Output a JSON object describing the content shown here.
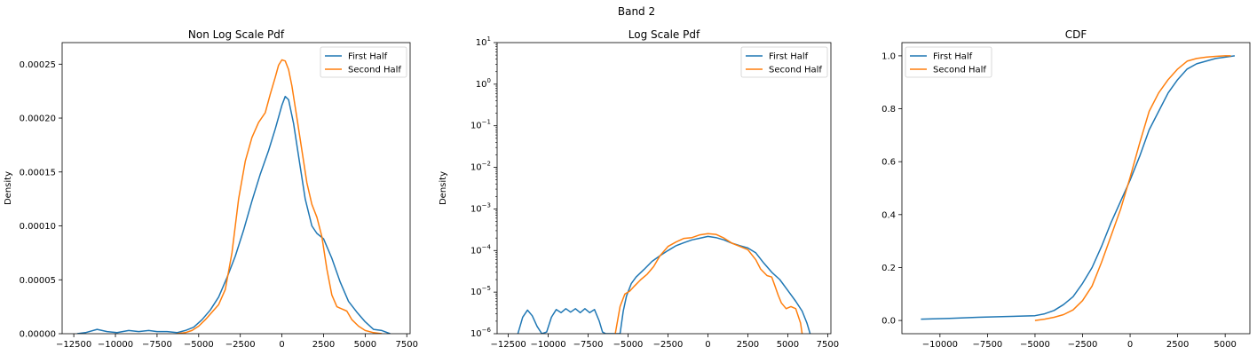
{
  "figure": {
    "suptitle": "Band 2"
  },
  "colors": {
    "first": "#1f77b4",
    "second": "#ff7f0e"
  },
  "chart_data": [
    {
      "type": "line",
      "title": "Non Log Scale Pdf",
      "xlabel": "",
      "ylabel": "Density",
      "xlim": [
        -13200,
        7700
      ],
      "ylim": [
        0,
        0.00027
      ],
      "yscale": "linear",
      "xticks": [
        -12500,
        -10000,
        -7500,
        -5000,
        -2500,
        0,
        2500,
        5000,
        7500
      ],
      "xtick_labels": [
        "−12500",
        "−10000",
        "−7500",
        "−5000",
        "−2500",
        "0",
        "2500",
        "5000",
        "7500"
      ],
      "yticks": [
        0,
        5e-05,
        0.0001,
        0.00015,
        0.0002,
        0.00025
      ],
      "ytick_labels": [
        "0.00000",
        "0.00005",
        "0.00010",
        "0.00015",
        "0.00020",
        "0.00025"
      ],
      "legend": {
        "placement": "upper right"
      },
      "series": [
        {
          "name": "First Half",
          "x": [
            -12300,
            -11800,
            -11100,
            -10500,
            -9900,
            -9200,
            -8600,
            -8000,
            -7500,
            -6900,
            -6300,
            -5800,
            -5300,
            -4800,
            -4300,
            -3800,
            -3300,
            -2800,
            -2300,
            -1800,
            -1300,
            -800,
            -400,
            0,
            200,
            400,
            700,
            1000,
            1400,
            1800,
            2100,
            2500,
            3000,
            3500,
            4000,
            4500,
            5000,
            5500,
            6000,
            6500
          ],
          "y": [
            0.0,
            1e-06,
            4e-06,
            2e-06,
            1e-06,
            3e-06,
            2e-06,
            3e-06,
            2e-06,
            2e-06,
            1e-06,
            3e-06,
            6e-06,
            1.3e-05,
            2.2e-05,
            3.4e-05,
            5.2e-05,
            7.2e-05,
            9.6e-05,
            0.000123,
            0.000148,
            0.00017,
            0.00019,
            0.000212,
            0.00022,
            0.000217,
            0.000195,
            0.000165,
            0.000125,
            0.0001,
            9.3e-05,
            8.8e-05,
            7e-05,
            4.8e-05,
            3e-05,
            2e-05,
            1.1e-05,
            4e-06,
            3e-06,
            0.0
          ]
        },
        {
          "name": "Second Half",
          "x": [
            -6300,
            -5800,
            -5400,
            -5000,
            -4600,
            -4200,
            -3800,
            -3400,
            -3000,
            -2600,
            -2200,
            -1800,
            -1400,
            -1000,
            -700,
            -400,
            -200,
            0,
            200,
            400,
            600,
            900,
            1200,
            1500,
            1800,
            2100,
            2400,
            2700,
            3000,
            3300,
            3600,
            3900,
            4200,
            4600,
            5000,
            5500,
            6000
          ],
          "y": [
            0.0,
            1e-06,
            3e-06,
            7e-06,
            1.3e-05,
            2e-05,
            2.7e-05,
            4.1e-05,
            7.5e-05,
            0.000125,
            0.00016,
            0.000182,
            0.000196,
            0.000205,
            0.000222,
            0.000238,
            0.000249,
            0.000254,
            0.000253,
            0.000245,
            0.00023,
            0.0002,
            0.00017,
            0.00014,
            0.00012,
            0.000108,
            9e-05,
            6e-05,
            3.6e-05,
            2.5e-05,
            2.3e-05,
            2.1e-05,
            1.3e-05,
            7e-06,
            3e-06,
            1e-06,
            0.0
          ]
        }
      ]
    },
    {
      "type": "line",
      "title": "Log Scale Pdf",
      "xlabel": "",
      "ylabel": "Density",
      "xlim": [
        -13200,
        7700
      ],
      "ylim": [
        1e-06,
        10
      ],
      "yscale": "log",
      "xticks": [
        -12500,
        -10000,
        -7500,
        -5000,
        -2500,
        0,
        2500,
        5000,
        7500
      ],
      "xtick_labels": [
        "−12500",
        "−10000",
        "−7500",
        "−5000",
        "−2500",
        "0",
        "2500",
        "5000",
        "7500"
      ],
      "yticks": [
        1e-06,
        1e-05,
        0.0001,
        0.001,
        0.01,
        0.1,
        1,
        10
      ],
      "ytick_mantissa": [
        "10",
        "10",
        "10",
        "10",
        "10",
        "10",
        "10",
        "10"
      ],
      "ytick_exponents": [
        "−6",
        "−5",
        "−4",
        "−3",
        "−2",
        "−1",
        "0",
        "1"
      ],
      "legend": {
        "placement": "upper right"
      },
      "series": [
        {
          "name": "First Half",
          "x": [
            -11900,
            -11600,
            -11300,
            -11000,
            -10700,
            -10400,
            -10100,
            -9800,
            -9500,
            -9200,
            -8900,
            -8600,
            -8300,
            -8000,
            -7700,
            -7400,
            -7100,
            -6800,
            -6600,
            -6400,
            -5500,
            -5300,
            -5100,
            -4800,
            -4500,
            -4000,
            -3500,
            -3000,
            -2500,
            -2000,
            -1500,
            -1000,
            -500,
            0,
            500,
            1000,
            1500,
            2000,
            2500,
            3000,
            3500,
            4000,
            4500,
            5000,
            5500,
            5900,
            6200,
            6400
          ],
          "y": [
            1e-06,
            2.5e-06,
            3.7e-06,
            2.7e-06,
            1.5e-06,
            1e-06,
            1.1e-06,
            2.5e-06,
            3.8e-06,
            3.2e-06,
            4e-06,
            3.3e-06,
            4e-06,
            3.2e-06,
            4e-06,
            3.2e-06,
            3.8e-06,
            2e-06,
            1.1e-06,
            1e-06,
            1e-06,
            3.5e-06,
            8e-06,
            1.6e-05,
            2.3e-05,
            3.5e-05,
            5.5e-05,
            7.5e-05,
            0.0001,
            0.00013,
            0.000155,
            0.00018,
            0.000198,
            0.000218,
            0.000205,
            0.00018,
            0.00015,
            0.00013,
            0.000115,
            8.8e-05,
            5e-05,
            3e-05,
            2e-05,
            1.1e-05,
            6e-06,
            3.5e-06,
            1.8e-06,
            1e-06
          ]
        },
        {
          "name": "Second Half",
          "x": [
            -5800,
            -5500,
            -5200,
            -4900,
            -4600,
            -4200,
            -3800,
            -3400,
            -3000,
            -2500,
            -2000,
            -1500,
            -1000,
            -500,
            0,
            500,
            1000,
            1500,
            2000,
            2500,
            3000,
            3300,
            3700,
            4000,
            4200,
            4400,
            4600,
            4900,
            5200,
            5500,
            5800,
            5900
          ],
          "y": [
            1e-06,
            4.5e-06,
            9e-06,
            1.05e-05,
            1.4e-05,
            2e-05,
            2.7e-05,
            4.1e-05,
            7.5e-05,
            0.000125,
            0.00016,
            0.000196,
            0.000205,
            0.000238,
            0.000254,
            0.000245,
            0.0002,
            0.00015,
            0.000125,
            0.000105,
            6e-05,
            3.6e-05,
            2.5e-05,
            2.3e-05,
            1.4e-05,
            8.5e-06,
            5.5e-06,
            4e-06,
            4.5e-06,
            4e-06,
            1.8e-06,
            1e-06
          ]
        }
      ]
    },
    {
      "type": "line",
      "title": "CDF",
      "xlabel": "",
      "ylabel": "",
      "xlim": [
        -12000,
        6300
      ],
      "ylim": [
        -0.05,
        1.05
      ],
      "yscale": "linear",
      "xticks": [
        -10000,
        -7500,
        -5000,
        -2500,
        0,
        2500,
        5000
      ],
      "xtick_labels": [
        "−10000",
        "−7500",
        "−5000",
        "−2500",
        "0",
        "2500",
        "5000"
      ],
      "yticks": [
        0,
        0.2,
        0.4,
        0.6,
        0.8,
        1.0
      ],
      "ytick_labels": [
        "0.0",
        "0.2",
        "0.4",
        "0.6",
        "0.8",
        "1.0"
      ],
      "legend": {
        "placement": "upper left"
      },
      "series": [
        {
          "name": "First Half",
          "x": [
            -11000,
            -9500,
            -8000,
            -6500,
            -5000,
            -4500,
            -4000,
            -3500,
            -3000,
            -2500,
            -2000,
            -1500,
            -1000,
            -500,
            0,
            500,
            1000,
            1500,
            2000,
            2500,
            3000,
            3500,
            4000,
            4500,
            5000,
            5500
          ],
          "y": [
            0.005,
            0.008,
            0.012,
            0.015,
            0.018,
            0.025,
            0.038,
            0.06,
            0.09,
            0.14,
            0.2,
            0.28,
            0.37,
            0.45,
            0.53,
            0.62,
            0.72,
            0.79,
            0.86,
            0.91,
            0.95,
            0.97,
            0.98,
            0.99,
            0.995,
            1.0
          ]
        },
        {
          "name": "Second Half",
          "x": [
            -5000,
            -4500,
            -4000,
            -3500,
            -3000,
            -2500,
            -2000,
            -1500,
            -1000,
            -500,
            0,
            500,
            1000,
            1500,
            2000,
            2500,
            3000,
            3500,
            4000,
            4500,
            5000,
            5300
          ],
          "y": [
            0.0,
            0.005,
            0.012,
            0.022,
            0.04,
            0.075,
            0.13,
            0.22,
            0.32,
            0.42,
            0.54,
            0.67,
            0.79,
            0.86,
            0.91,
            0.95,
            0.98,
            0.99,
            0.995,
            0.998,
            1.0,
            1.0
          ]
        }
      ]
    }
  ]
}
